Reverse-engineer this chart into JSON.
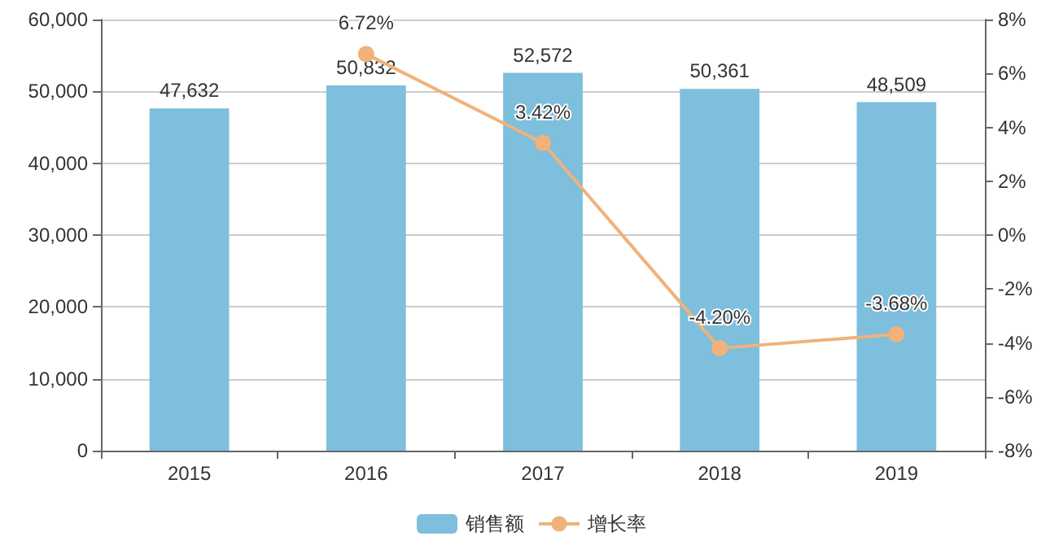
{
  "chart_data": {
    "type": "bar",
    "categories": [
      "2015",
      "2016",
      "2017",
      "2018",
      "2019"
    ],
    "series": [
      {
        "name": "销售额",
        "color": "#7dbfdc",
        "values": [
          47632,
          50832,
          52572,
          50361,
          48509
        ],
        "value_labels": [
          "47,632",
          "50,832",
          "52,572",
          "50,361",
          "48,509"
        ]
      },
      {
        "name": "增长率",
        "type": "line",
        "axis": "y2",
        "color": "#f0b27a",
        "values": [
          null,
          6.72,
          3.42,
          -4.2,
          -3.68
        ],
        "value_labels": [
          null,
          "6.72%",
          "3.42%",
          "-4.20%",
          "-3.68%"
        ]
      }
    ],
    "ylim": [
      0,
      60000
    ],
    "yticks": [
      {
        "value": 0,
        "label": "0"
      },
      {
        "value": 10000,
        "label": "10,000"
      },
      {
        "value": 20000,
        "label": "20,000"
      },
      {
        "value": 30000,
        "label": "30,000"
      },
      {
        "value": 40000,
        "label": "40,000"
      },
      {
        "value": 50000,
        "label": "50,000"
      },
      {
        "value": 60000,
        "label": "60,000"
      }
    ],
    "y2lim": [
      -8,
      8
    ],
    "y2ticks": [
      {
        "value": -8,
        "label": "-8%"
      },
      {
        "value": -6,
        "label": "-6%"
      },
      {
        "value": -4,
        "label": "-4%"
      },
      {
        "value": -2,
        "label": "-2%"
      },
      {
        "value": 0,
        "label": "0%"
      },
      {
        "value": 2,
        "label": "2%"
      },
      {
        "value": 4,
        "label": "4%"
      },
      {
        "value": 6,
        "label": "6%"
      },
      {
        "value": 8,
        "label": "8%"
      }
    ],
    "grid": "y",
    "legend": "bottom",
    "marker": "circle"
  }
}
